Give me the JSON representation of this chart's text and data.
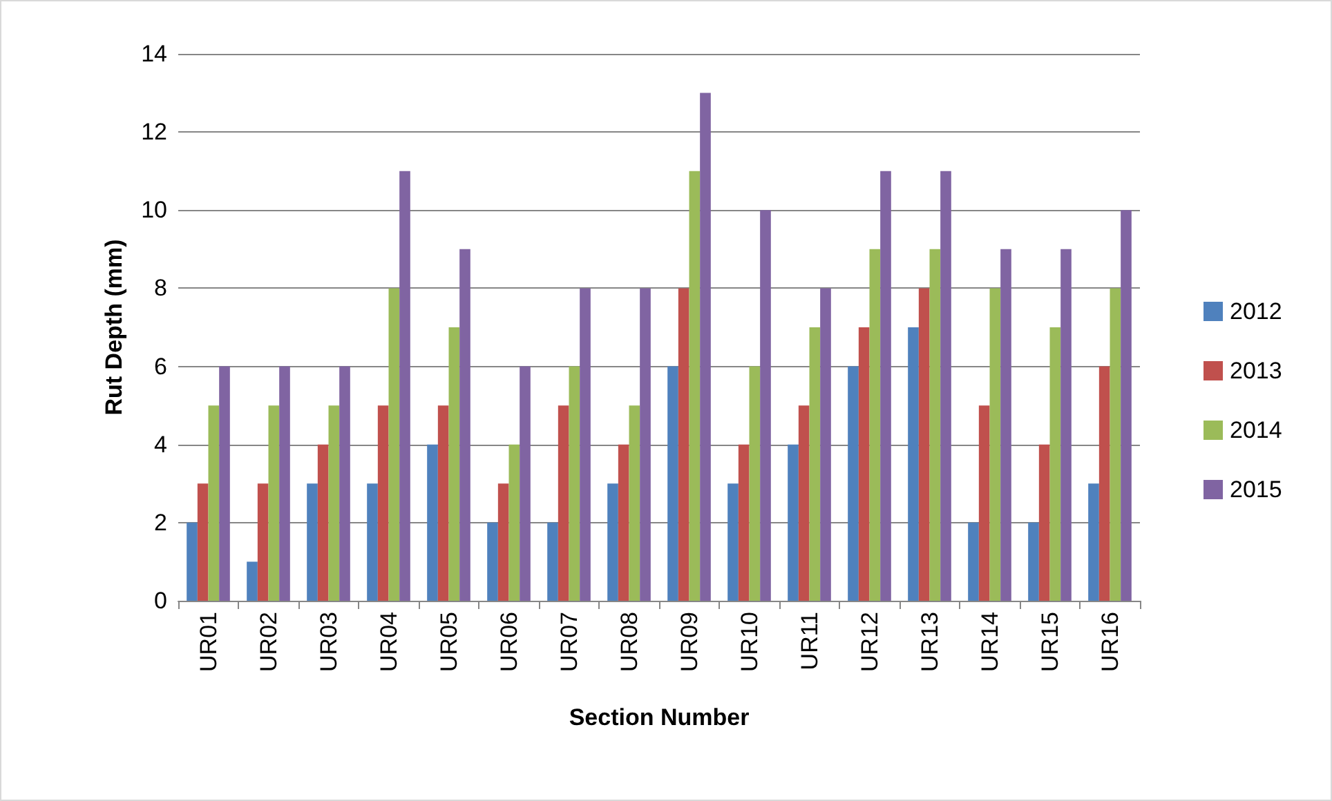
{
  "chart_data": {
    "type": "bar",
    "xlabel": "Section Number",
    "ylabel": "Rut Depth (mm)",
    "categories": [
      "UR01",
      "UR02",
      "UR03",
      "UR04",
      "UR05",
      "UR06",
      "UR07",
      "UR08",
      "UR09",
      "UR10",
      "UR11",
      "UR12",
      "UR13",
      "UR14",
      "UR15",
      "UR16"
    ],
    "series": [
      {
        "name": "2012",
        "color": "#4f81bd",
        "values": [
          2,
          1,
          3,
          3,
          4,
          2,
          2,
          3,
          6,
          3,
          4,
          6,
          7,
          2,
          2,
          3
        ]
      },
      {
        "name": "2013",
        "color": "#c0504d",
        "values": [
          3,
          3,
          4,
          5,
          5,
          3,
          5,
          4,
          8,
          4,
          5,
          7,
          8,
          5,
          4,
          6
        ]
      },
      {
        "name": "2014",
        "color": "#9bbb59",
        "values": [
          5,
          5,
          5,
          8,
          7,
          4,
          6,
          5,
          11,
          6,
          7,
          9,
          9,
          8,
          7,
          8
        ]
      },
      {
        "name": "2015",
        "color": "#8064a2",
        "values": [
          6,
          6,
          6,
          11,
          9,
          6,
          8,
          8,
          13,
          10,
          8,
          11,
          11,
          9,
          9,
          10
        ]
      }
    ],
    "ylim": [
      0,
      14
    ],
    "yticks": [
      0,
      2,
      4,
      6,
      8,
      10,
      12,
      14
    ],
    "grid": "y",
    "legend": "right"
  }
}
